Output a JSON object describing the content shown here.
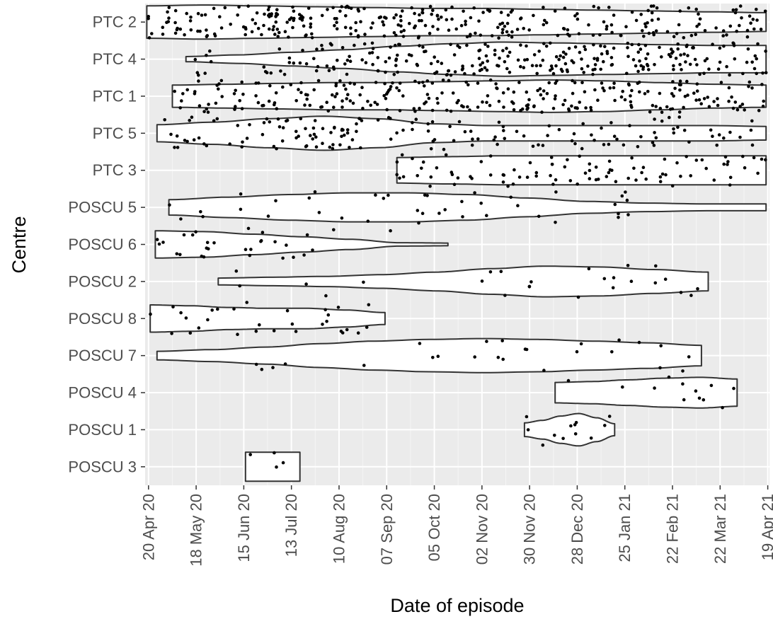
{
  "chart_data": {
    "type": "violin",
    "xlabel": "Date of episode",
    "ylabel": "Centre",
    "x_ticks": [
      "20 Apr 20",
      "18 May 20",
      "15 Jun 20",
      "13 Jul 20",
      "10 Aug 20",
      "07 Sep 20",
      "05 Oct 20",
      "02 Nov 20",
      "30 Nov 20",
      "28 Dec 20",
      "25 Jan 21",
      "22 Feb 21",
      "22 Mar 21",
      "19 Apr 21"
    ],
    "xlim": [
      "2020-04-18",
      "2021-04-20"
    ],
    "grid": true,
    "categories": [
      "PTC 2",
      "PTC 4",
      "PTC 1",
      "PTC 5",
      "PTC 3",
      "POSCU 5",
      "POSCU 6",
      "POSCU 2",
      "POSCU 8",
      "POSCU 7",
      "POSCU 4",
      "POSCU 1",
      "POSCU 3"
    ],
    "series": [
      {
        "centre": "PTC 2",
        "min": "2020-04-19",
        "max": "2021-04-18",
        "n": 300,
        "density": [
          0.95,
          1.0,
          0.95,
          0.9,
          0.85,
          0.8,
          0.8,
          0.75,
          0.7,
          0.65,
          0.6,
          0.55
        ]
      },
      {
        "centre": "PTC 4",
        "min": "2020-05-12",
        "max": "2021-04-18",
        "n": 260,
        "density": [
          0.15,
          0.25,
          0.4,
          0.55,
          0.75,
          0.9,
          1.0,
          0.95,
          0.9,
          0.85,
          0.8,
          0.8
        ]
      },
      {
        "centre": "PTC 1",
        "min": "2020-05-04",
        "max": "2021-04-18",
        "n": 260,
        "density": [
          0.65,
          0.7,
          0.75,
          0.8,
          0.8,
          0.85,
          0.9,
          0.95,
          0.9,
          0.8,
          0.7,
          0.65
        ]
      },
      {
        "centre": "PTC 5",
        "min": "2020-04-25",
        "max": "2021-04-18",
        "n": 150,
        "density": [
          0.5,
          0.65,
          0.85,
          1.0,
          0.85,
          0.55,
          0.45,
          0.45,
          0.45,
          0.45,
          0.45,
          0.4
        ]
      },
      {
        "centre": "PTC 3",
        "min": "2020-09-13",
        "max": "2021-04-18",
        "n": 90,
        "density": [
          0.75,
          0.8,
          0.85,
          0.85,
          0.85,
          0.85,
          0.85,
          0.85
        ]
      },
      {
        "centre": "POSCU 5",
        "min": "2020-05-02",
        "max": "2021-04-18",
        "n": 40,
        "density": [
          0.45,
          0.6,
          0.75,
          0.85,
          0.85,
          0.75,
          0.55,
          0.35,
          0.25,
          0.2,
          0.2
        ]
      },
      {
        "centre": "POSCU 6",
        "min": "2020-04-24",
        "max": "2020-10-13",
        "n": 30,
        "density": [
          0.8,
          0.75,
          0.6,
          0.45,
          0.3,
          0.1,
          0.08
        ]
      },
      {
        "centre": "POSCU 2",
        "min": "2020-05-31",
        "max": "2021-03-15",
        "n": 25,
        "density": [
          0.2,
          0.25,
          0.3,
          0.4,
          0.55,
          0.75,
          0.9,
          0.85,
          0.7,
          0.55
        ]
      },
      {
        "centre": "POSCU 8",
        "min": "2020-04-21",
        "max": "2020-09-06",
        "n": 30,
        "density": [
          0.8,
          0.75,
          0.65,
          0.6,
          0.6,
          0.5,
          0.35
        ]
      },
      {
        "centre": "POSCU 7",
        "min": "2020-04-25",
        "max": "2021-03-11",
        "n": 25,
        "density": [
          0.25,
          0.35,
          0.5,
          0.7,
          0.85,
          0.95,
          1.0,
          0.95,
          0.85,
          0.75,
          0.6
        ]
      },
      {
        "centre": "POSCU 4",
        "min": "2020-12-15",
        "max": "2021-04-01",
        "n": 12,
        "density": [
          0.6,
          0.65,
          0.75,
          0.85,
          0.9,
          0.8
        ]
      },
      {
        "centre": "POSCU 1",
        "min": "2020-11-27",
        "max": "2021-01-19",
        "n": 12,
        "density": [
          0.4,
          0.55,
          0.8,
          0.95,
          0.7,
          0.35
        ]
      },
      {
        "centre": "POSCU 3",
        "min": "2020-06-16",
        "max": "2020-07-18",
        "n": 4,
        "density": [
          0.85,
          0.85,
          0.85
        ]
      }
    ]
  }
}
